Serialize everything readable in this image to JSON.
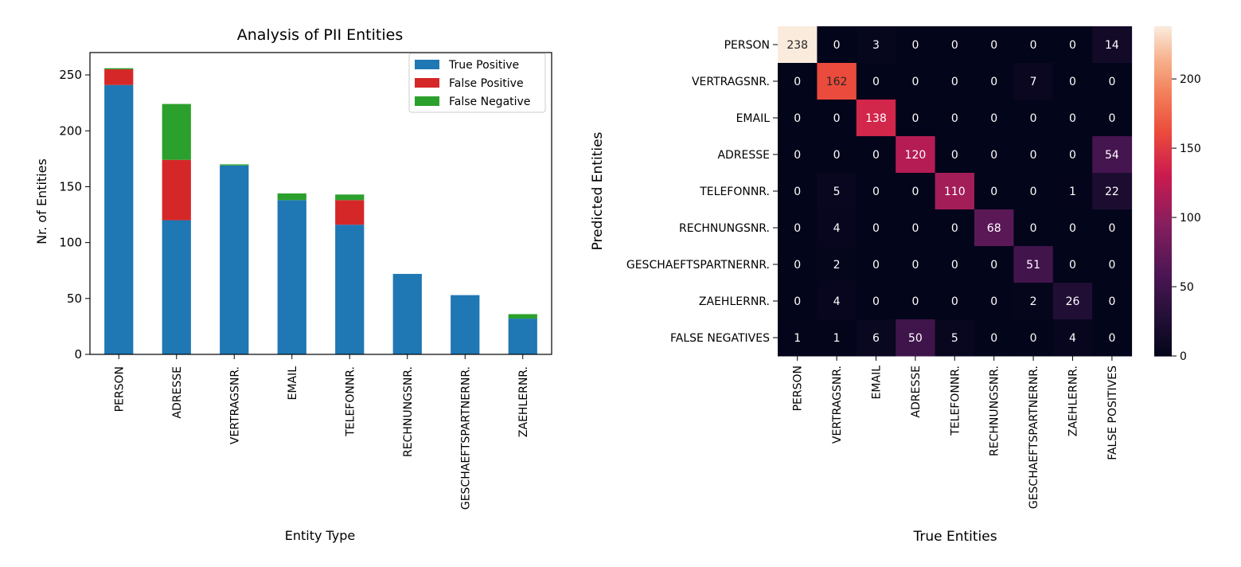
{
  "chart_data": [
    {
      "type": "bar",
      "stacked": true,
      "title": "Analysis of PII Entities",
      "xlabel": "Entity Type",
      "ylabel": "Nr. of Entities",
      "ylim": [
        0,
        270
      ],
      "yticks": [
        0,
        50,
        100,
        150,
        200,
        250
      ],
      "categories": [
        "PERSON",
        "ADRESSE",
        "VERTRAGSNR.",
        "EMAIL",
        "TELEFONNR.",
        "RECHNUNGSNR.",
        "GESCHAEFTSPARTNERNR.",
        "ZAEHLERNR."
      ],
      "series": [
        {
          "name": "True Positive",
          "color": "#1f77b4",
          "values": [
            241,
            120,
            169,
            138,
            116,
            72,
            53,
            32
          ]
        },
        {
          "name": "False Positive",
          "color": "#d62728",
          "values": [
            14,
            54,
            0,
            0,
            22,
            0,
            0,
            0
          ]
        },
        {
          "name": "False Negative",
          "color": "#2ca02c",
          "values": [
            1,
            50,
            1,
            6,
            5,
            0,
            0,
            4
          ]
        }
      ],
      "legend_position": "top-right",
      "grid": false
    },
    {
      "type": "heatmap",
      "xlabel": "True Entities",
      "ylabel": "Predicted Entities",
      "x_categories": [
        "PERSON",
        "VERTRAGSNR.",
        "EMAIL",
        "ADRESSE",
        "TELEFONNR.",
        "RECHNUNGSNR.",
        "GESCHAEFTSPARTNERNR.",
        "ZAEHLERNR.",
        "FALSE POSITIVES"
      ],
      "y_categories": [
        "PERSON",
        "VERTRAGSNR.",
        "EMAIL",
        "ADRESSE",
        "TELEFONNR.",
        "RECHNUNGSNR.",
        "GESCHAEFTSPARTNERNR.",
        "ZAEHLERNR.",
        "FALSE NEGATIVES"
      ],
      "values": [
        [
          238,
          0,
          3,
          0,
          0,
          0,
          0,
          0,
          14
        ],
        [
          0,
          162,
          0,
          0,
          0,
          0,
          7,
          0,
          0
        ],
        [
          0,
          0,
          138,
          0,
          0,
          0,
          0,
          0,
          0
        ],
        [
          0,
          0,
          0,
          120,
          0,
          0,
          0,
          0,
          54
        ],
        [
          0,
          5,
          0,
          0,
          110,
          0,
          0,
          1,
          22
        ],
        [
          0,
          4,
          0,
          0,
          0,
          68,
          0,
          0,
          0
        ],
        [
          0,
          2,
          0,
          0,
          0,
          0,
          51,
          0,
          0
        ],
        [
          0,
          4,
          0,
          0,
          0,
          0,
          2,
          26,
          0
        ],
        [
          1,
          1,
          6,
          50,
          5,
          0,
          0,
          4,
          0
        ]
      ],
      "colormap": "rocket",
      "colorbar_range": [
        0,
        238
      ],
      "colorbar_ticks": [
        0,
        50,
        100,
        150,
        200
      ],
      "grid": false
    }
  ]
}
